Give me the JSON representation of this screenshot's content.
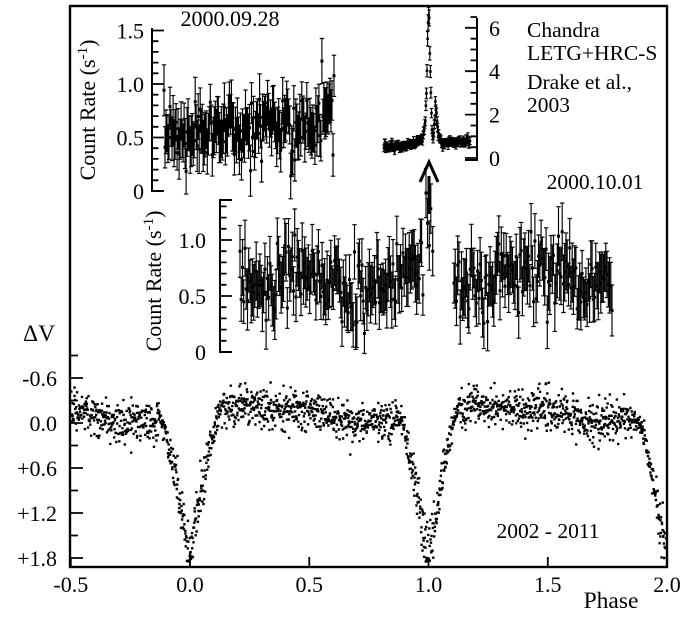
{
  "figure": {
    "background": "#ffffff",
    "ink": "#000000"
  },
  "annotations": {
    "inset_date": "2000.09.28",
    "instrument_line1": "Chandra",
    "instrument_line2": "LETG+HRC-S",
    "reference_line1": "Drake et al.,",
    "reference_line2": "2003",
    "main_xray_date": "2000.10.01",
    "optical_span": "2002 - 2011"
  },
  "axes": {
    "optical": {
      "xlabel": "Phase",
      "ylabel": "ΔV",
      "xticks": [
        "-0.5",
        "0.0",
        "0.5",
        "1.0",
        "1.5",
        "2.0"
      ],
      "yticks": [
        "-0.6",
        "0.0",
        "+0.6",
        "+1.2",
        "+1.8"
      ],
      "ytick_minor_step": 0.3,
      "x_range": [
        -0.5,
        2.0
      ]
    },
    "inset_xray": {
      "ylabel": "Count Rate (s⁻¹)",
      "yticks": [
        "0",
        "0.5",
        "1.0",
        "1.5"
      ],
      "ytick_minor_step": 0.1
    },
    "flare": {
      "yticks": [
        "0",
        "2",
        "4",
        "6"
      ],
      "ytick_minor_step": 0.5,
      "side": "right"
    },
    "main_xray": {
      "ylabel": "Count Rate (s⁻¹)",
      "yticks": [
        "0",
        "0.5",
        "1.0"
      ],
      "ytick_minor_step": 0.1
    }
  },
  "chart_data": [
    {
      "id": "xray_0928",
      "type": "scatter",
      "title": "2000.09.28",
      "ylabel": "Count Rate (s⁻¹)",
      "ylim": [
        0,
        1.55
      ],
      "yticks": [
        0,
        0.5,
        1.0,
        1.5
      ],
      "marker": "square",
      "errorbars": true,
      "n": 170,
      "seed": 7,
      "mean": 0.58,
      "trend": 0.22,
      "wiggle": 0.07,
      "sigma": 0.15,
      "errorbar": 0.2,
      "vmin": 0.14,
      "vmax": 1.32
    },
    {
      "id": "xray_flare",
      "type": "scatter",
      "instrument": "Chandra LETG+HRC-S",
      "reference": "Drake et al., 2003",
      "ylim": [
        0,
        6.8
      ],
      "yticks": [
        0,
        2,
        4,
        6
      ],
      "marker": "square",
      "errorbars": true,
      "n": 155,
      "seed": 13,
      "noise_base": 0.05,
      "noise_scale": 0.06,
      "err_base": 0.14,
      "err_scale": 0.035,
      "peak_value": 6.5,
      "quiescent_value": 0.6,
      "profile": [
        [
          0,
          0.5
        ],
        [
          0.1,
          0.55
        ],
        [
          0.2,
          0.52
        ],
        [
          0.3,
          0.6
        ],
        [
          0.38,
          0.65
        ],
        [
          0.43,
          0.8
        ],
        [
          0.46,
          1.1
        ],
        [
          0.48,
          1.8
        ],
        [
          0.495,
          3.2
        ],
        [
          0.505,
          5.0
        ],
        [
          0.515,
          6.5
        ],
        [
          0.525,
          6.3
        ],
        [
          0.532,
          5.2
        ],
        [
          0.54,
          3.6
        ],
        [
          0.55,
          2.2
        ],
        [
          0.56,
          1.2
        ],
        [
          0.57,
          0.75
        ],
        [
          0.585,
          1.5
        ],
        [
          0.6,
          2.4
        ],
        [
          0.612,
          2.0
        ],
        [
          0.628,
          1.2
        ],
        [
          0.65,
          0.85
        ],
        [
          0.68,
          0.7
        ],
        [
          0.8,
          0.68
        ],
        [
          1,
          0.75
        ]
      ]
    },
    {
      "id": "xray_1001",
      "type": "scatter",
      "title": "2000.10.01",
      "ylabel": "Count Rate (s⁻¹)",
      "ylim": [
        0,
        1.45
      ],
      "yticks": [
        0,
        0.5,
        1.0
      ],
      "marker": "square",
      "errorbars": true,
      "n": 300,
      "seed": 23,
      "mean": 0.65,
      "trend": 0.02,
      "wiggle": 0.07,
      "sigma": 0.16,
      "errorbar": 0.22,
      "vmin": 0.1,
      "vmax": 1.3,
      "gap": [
        0.492,
        0.573
      ],
      "flare_spike": [
        [
          0.5,
          1.42
        ],
        [
          0.504,
          1.15
        ],
        [
          0.509,
          0.95
        ],
        [
          0.513,
          1.28
        ],
        [
          0.518,
          0.9
        ]
      ]
    },
    {
      "id": "optical_v",
      "type": "scatter",
      "title": "2002 - 2011",
      "xlabel": "Phase",
      "ylabel": "ΔV",
      "xlim": [
        -0.5,
        2.0
      ],
      "xticks": [
        -0.5,
        0.0,
        0.5,
        1.0,
        1.5,
        2.0
      ],
      "yticks_mag": [
        -0.6,
        0.0,
        0.6,
        1.2,
        1.8
      ],
      "y_axis_inverted_mag": true,
      "marker": "dot",
      "errorbars": false,
      "n": 1900,
      "seed": 42,
      "base_mag": -0.12,
      "wave_amp": 0.1,
      "wave_phase": 0.55,
      "wave2_amp": 0.035,
      "sigma": 0.13,
      "clamp": [
        -0.56,
        0.46
      ],
      "eclipse": {
        "phase_centers": [
          0.0,
          1.0,
          2.0
        ],
        "half_width": 0.13,
        "depth": 1.95,
        "exponent": 1.5,
        "noise": 0.15,
        "max_depth_mag": 1.85
      }
    }
  ]
}
